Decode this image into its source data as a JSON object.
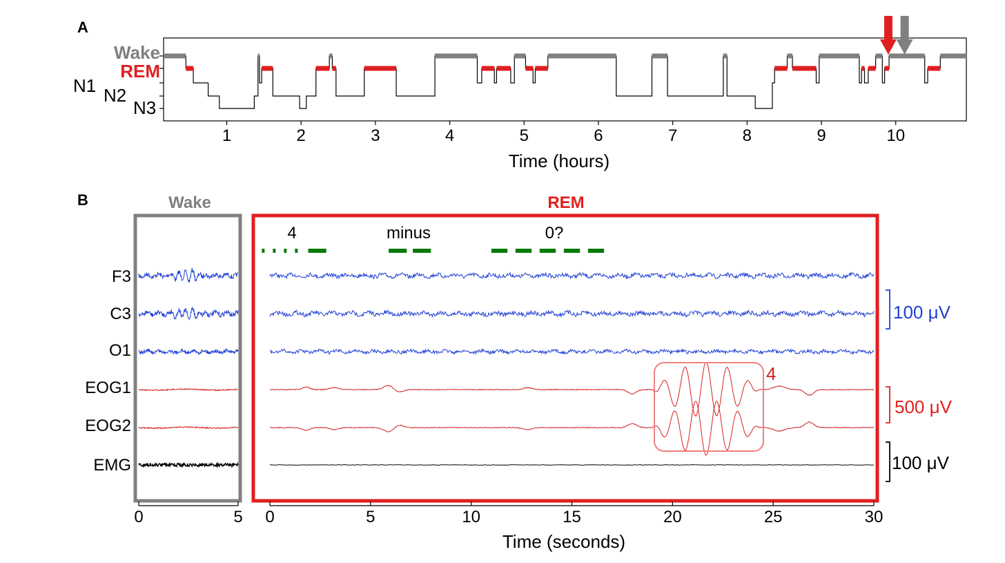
{
  "panel_a": {
    "label": "A",
    "stage_labels": {
      "wake": "Wake",
      "rem": "REM",
      "n1": "N1",
      "n2": "N2",
      "n3": "N3"
    },
    "xlabel": "Time (hours)",
    "xticks": [
      "1",
      "2",
      "3",
      "4",
      "5",
      "6",
      "7",
      "8",
      "9",
      "10"
    ]
  },
  "panel_b": {
    "label": "B",
    "wake_title": "Wake",
    "rem_title": "REM",
    "annotations": {
      "first": "4",
      "second": "minus",
      "third": "0?"
    },
    "channels": [
      "F3",
      "C3",
      "O1",
      "EOG1",
      "EOG2",
      "EMG"
    ],
    "scale_eeg": "100 μV",
    "scale_eog": "500 μV",
    "scale_emg": "100 μV",
    "eog_box_label": "4",
    "xlabel": "Time (seconds)",
    "wake_xticks": [
      "0",
      "5"
    ],
    "rem_xticks": [
      "0",
      "5",
      "10",
      "15",
      "20",
      "25",
      "30"
    ]
  },
  "colors": {
    "wake": "#808080",
    "rem": "#e02020",
    "eeg": "#1f3fd4",
    "eog": "#d42020",
    "emg": "#000000",
    "signal": "#0a7a0a"
  },
  "chart_data": [
    {
      "type": "line",
      "title": "",
      "xlabel": "Time (hours)",
      "ylabel": "",
      "xlim": [
        0.15,
        10.95
      ],
      "y_categories": [
        "Wake",
        "REM",
        "N1",
        "N2",
        "N3"
      ],
      "steps": [
        [
          0.15,
          "Wake"
        ],
        [
          0.45,
          "REM"
        ],
        [
          0.55,
          "N1"
        ],
        [
          0.75,
          "N2"
        ],
        [
          0.9,
          "N3"
        ],
        [
          1.37,
          "N2"
        ],
        [
          1.42,
          "Wake"
        ],
        [
          1.44,
          "N1"
        ],
        [
          1.47,
          "REM"
        ],
        [
          1.62,
          "N2"
        ],
        [
          1.98,
          "N3"
        ],
        [
          2.07,
          "N2"
        ],
        [
          2.2,
          "REM"
        ],
        [
          2.38,
          "Wake"
        ],
        [
          2.42,
          "REM"
        ],
        [
          2.47,
          "N2"
        ],
        [
          2.85,
          "REM"
        ],
        [
          3.28,
          "N2"
        ],
        [
          3.8,
          "Wake"
        ],
        [
          4.37,
          "N1"
        ],
        [
          4.43,
          "REM"
        ],
        [
          4.6,
          "N1"
        ],
        [
          4.63,
          "REM"
        ],
        [
          4.82,
          "N1"
        ],
        [
          4.87,
          "Wake"
        ],
        [
          5.02,
          "REM"
        ],
        [
          5.12,
          "N1"
        ],
        [
          5.15,
          "REM"
        ],
        [
          5.32,
          "Wake"
        ],
        [
          6.24,
          "N2"
        ],
        [
          6.72,
          "Wake"
        ],
        [
          6.93,
          "N2"
        ],
        [
          7.68,
          "Wake"
        ],
        [
          7.73,
          "N2"
        ],
        [
          8.11,
          "N3"
        ],
        [
          8.34,
          "N1"
        ],
        [
          8.37,
          "REM"
        ],
        [
          8.54,
          "Wake"
        ],
        [
          8.61,
          "REM"
        ],
        [
          8.93,
          "N1"
        ],
        [
          8.97,
          "Wake"
        ],
        [
          9.51,
          "N1"
        ],
        [
          9.54,
          "REM"
        ],
        [
          9.58,
          "N1"
        ],
        [
          9.63,
          "REM"
        ],
        [
          9.73,
          "Wake"
        ],
        [
          9.82,
          "N1"
        ],
        [
          9.85,
          "REM"
        ],
        [
          9.91,
          "Wake"
        ],
        [
          10.39,
          "N1"
        ],
        [
          10.43,
          "REM"
        ],
        [
          10.6,
          "Wake"
        ],
        [
          10.95,
          "Wake"
        ]
      ],
      "arrows": [
        {
          "color": "red",
          "x": 9.9
        },
        {
          "color": "gray",
          "x": 10.12
        }
      ]
    },
    {
      "type": "line",
      "title": "",
      "xlabel": "Time (seconds)",
      "ylabel": "",
      "series": [
        {
          "name": "F3"
        },
        {
          "name": "C3"
        },
        {
          "name": "O1"
        },
        {
          "name": "EOG1"
        },
        {
          "name": "EOG2"
        },
        {
          "name": "EMG"
        }
      ],
      "wake_xlim": [
        0,
        5
      ],
      "rem_xlim": [
        0,
        30
      ],
      "signal_segments_seconds": [
        {
          "style": "dotted",
          "x": [
            -0.4,
            1.6
          ]
        },
        {
          "style": "dash",
          "x": [
            1.9,
            2.8
          ]
        },
        {
          "style": "dash",
          "x": [
            5.9,
            6.8
          ]
        },
        {
          "style": "dash",
          "x": [
            7.1,
            8.0
          ]
        },
        {
          "style": "dash",
          "x": [
            11.0,
            11.8
          ]
        },
        {
          "style": "dash",
          "x": [
            12.2,
            13.0
          ]
        },
        {
          "style": "dash",
          "x": [
            13.4,
            14.2
          ]
        },
        {
          "style": "dash",
          "x": [
            14.6,
            15.4
          ]
        },
        {
          "style": "dash",
          "x": [
            15.8,
            16.6
          ]
        }
      ],
      "eog_highlight_seconds": [
        19.0,
        24.3
      ]
    }
  ]
}
